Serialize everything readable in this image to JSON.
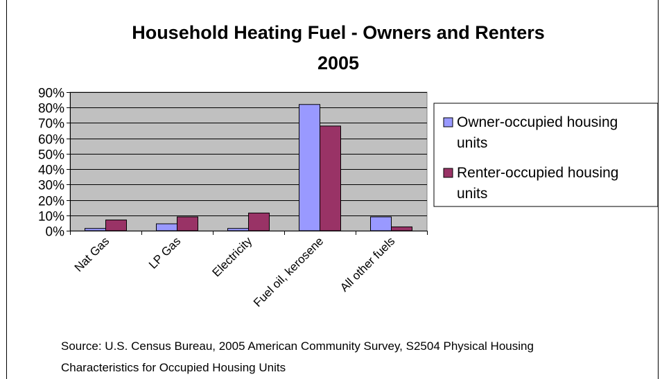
{
  "chart_data": {
    "type": "bar",
    "title": [
      "Household Heating Fuel - Owners and Renters",
      "2005"
    ],
    "xlabel": "",
    "ylabel": "",
    "categories": [
      "Nat Gas",
      "LP Gas",
      "Electricity",
      "Fuel oil, kerosene",
      "All other fuels"
    ],
    "series": [
      {
        "name": "Owner-occupied housing units",
        "values": [
          1.5,
          4.5,
          1.5,
          82,
          9
        ],
        "color": "#9999ff"
      },
      {
        "name": "Renter-occupied housing units",
        "values": [
          7,
          9,
          11.5,
          68,
          2.5
        ],
        "color": "#993366"
      }
    ],
    "ylim": [
      0,
      90
    ],
    "yticks": [
      0,
      10,
      20,
      30,
      40,
      50,
      60,
      70,
      80,
      90
    ],
    "ytick_labels": [
      "0%",
      "10%",
      "20%",
      "30%",
      "40%",
      "50%",
      "60%",
      "70%",
      "80%",
      "90%"
    ],
    "grid": true,
    "plot_background": "#c0c0c0",
    "legend_position": "right",
    "source": [
      "Source: U.S. Census Bureau, 2005 American Community Survey, S2504 Physical Housing",
      "Characteristics for Occupied Housing Units"
    ]
  }
}
